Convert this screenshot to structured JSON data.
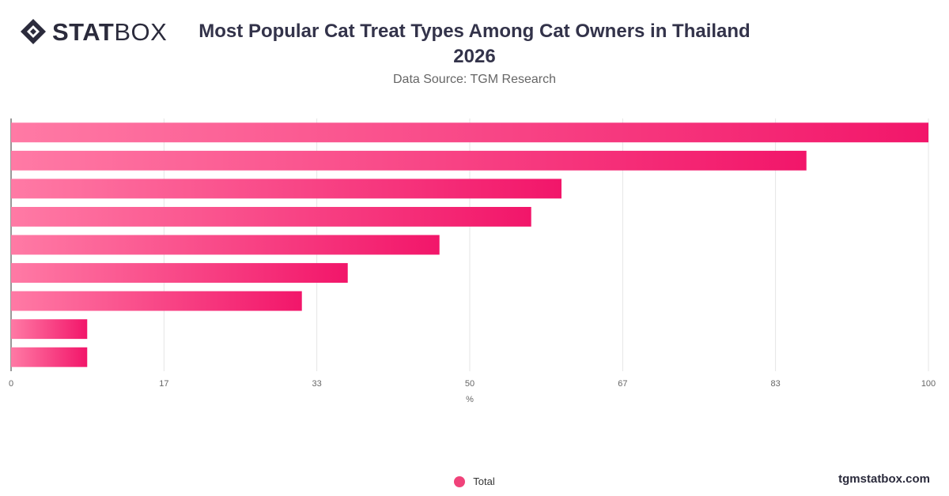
{
  "brand": {
    "logo_bold": "STAT",
    "logo_thin": "BOX",
    "footer": "tgmstatbox.com"
  },
  "colors": {
    "bar_start": "#ff7aa5",
    "bar_end": "#f2166a",
    "legend": "#f0427a",
    "grid": "#e4e4e4"
  },
  "chart_data": {
    "type": "bar",
    "orientation": "horizontal",
    "title": "Most Popular Cat Treat Types Among Cat Owners in Thailand 2026",
    "subtitle": "Data Source: TGM Research",
    "xlabel": "%",
    "xlim": [
      0,
      100
    ],
    "ticks": [
      "0",
      "17",
      "33",
      "50",
      "67",
      "83",
      "100"
    ],
    "tick_values": [
      0,
      16.67,
      33.33,
      50,
      66.67,
      83.33,
      100
    ],
    "grid": true,
    "legend_position": "bottom",
    "series": [
      {
        "name": "Total",
        "values": [
          100,
          86.7,
          60,
          56.7,
          46.7,
          36.7,
          31.7,
          8.3,
          8.3
        ]
      }
    ]
  }
}
